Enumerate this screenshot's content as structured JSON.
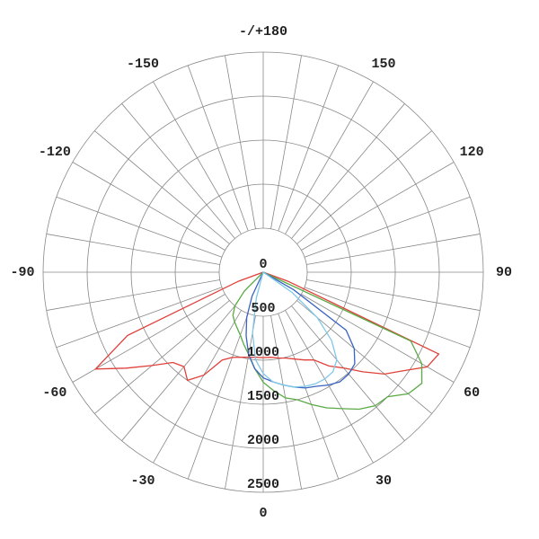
{
  "chart_data": {
    "type": "polar",
    "theta": [
      -90,
      -85,
      -80,
      -75,
      -70,
      -65,
      -60,
      -55,
      -50,
      -45,
      -40,
      -35,
      -30,
      -25,
      -20,
      -15,
      -10,
      -5,
      0,
      5,
      10,
      15,
      20,
      25,
      30,
      35,
      40,
      45,
      50,
      55,
      60,
      65,
      70,
      75,
      80,
      85,
      90
    ],
    "series": [
      {
        "color": "#e0403a",
        "values": [
          0,
          0,
          0,
          0,
          300,
          1700,
          2200,
          1900,
          1650,
          1450,
          1400,
          1500,
          1350,
          1100,
          1030,
          1000,
          980,
          970,
          970,
          970,
          990,
          1010,
          1050,
          1100,
          1150,
          1300,
          1420,
          1600,
          1800,
          1950,
          2150,
          2200,
          300,
          0,
          0,
          0,
          0
        ]
      },
      {
        "color": "#5aaa44",
        "values": [
          0,
          0,
          0,
          0,
          0,
          0,
          0,
          0,
          0,
          300,
          500,
          600,
          650,
          700,
          760,
          850,
          950,
          1100,
          1250,
          1350,
          1450,
          1500,
          1600,
          1700,
          1790,
          1900,
          1980,
          2000,
          2150,
          2200,
          2080,
          1850,
          0,
          0,
          0,
          0,
          0
        ]
      },
      {
        "color": "#3a64c0",
        "values": [
          0,
          0,
          0,
          0,
          0,
          0,
          0,
          0,
          0,
          0,
          0,
          0,
          0,
          300,
          550,
          750,
          950,
          1100,
          1200,
          1250,
          1300,
          1350,
          1400,
          1430,
          1480,
          1520,
          1510,
          1470,
          1350,
          1150,
          400,
          0,
          0,
          0,
          0,
          0,
          0
        ]
      },
      {
        "color": "#7fc8e8",
        "values": [
          0,
          0,
          0,
          0,
          0,
          0,
          0,
          0,
          0,
          0,
          0,
          0,
          0,
          0,
          0,
          300,
          700,
          1000,
          1150,
          1250,
          1300,
          1350,
          1380,
          1400,
          1400,
          1380,
          1300,
          1100,
          800,
          400,
          0,
          0,
          0,
          0,
          0,
          0,
          0
        ]
      }
    ],
    "rlim": [
      0,
      2500
    ],
    "rticks": [
      0,
      500,
      1000,
      1500,
      2000,
      2500
    ],
    "angle_ticks": [
      {
        "value": 180,
        "label": "-/+180"
      },
      -150,
      150,
      -120,
      120,
      -90,
      90,
      -60,
      60,
      -30,
      30,
      0
    ],
    "angle_grid_step": 10
  }
}
